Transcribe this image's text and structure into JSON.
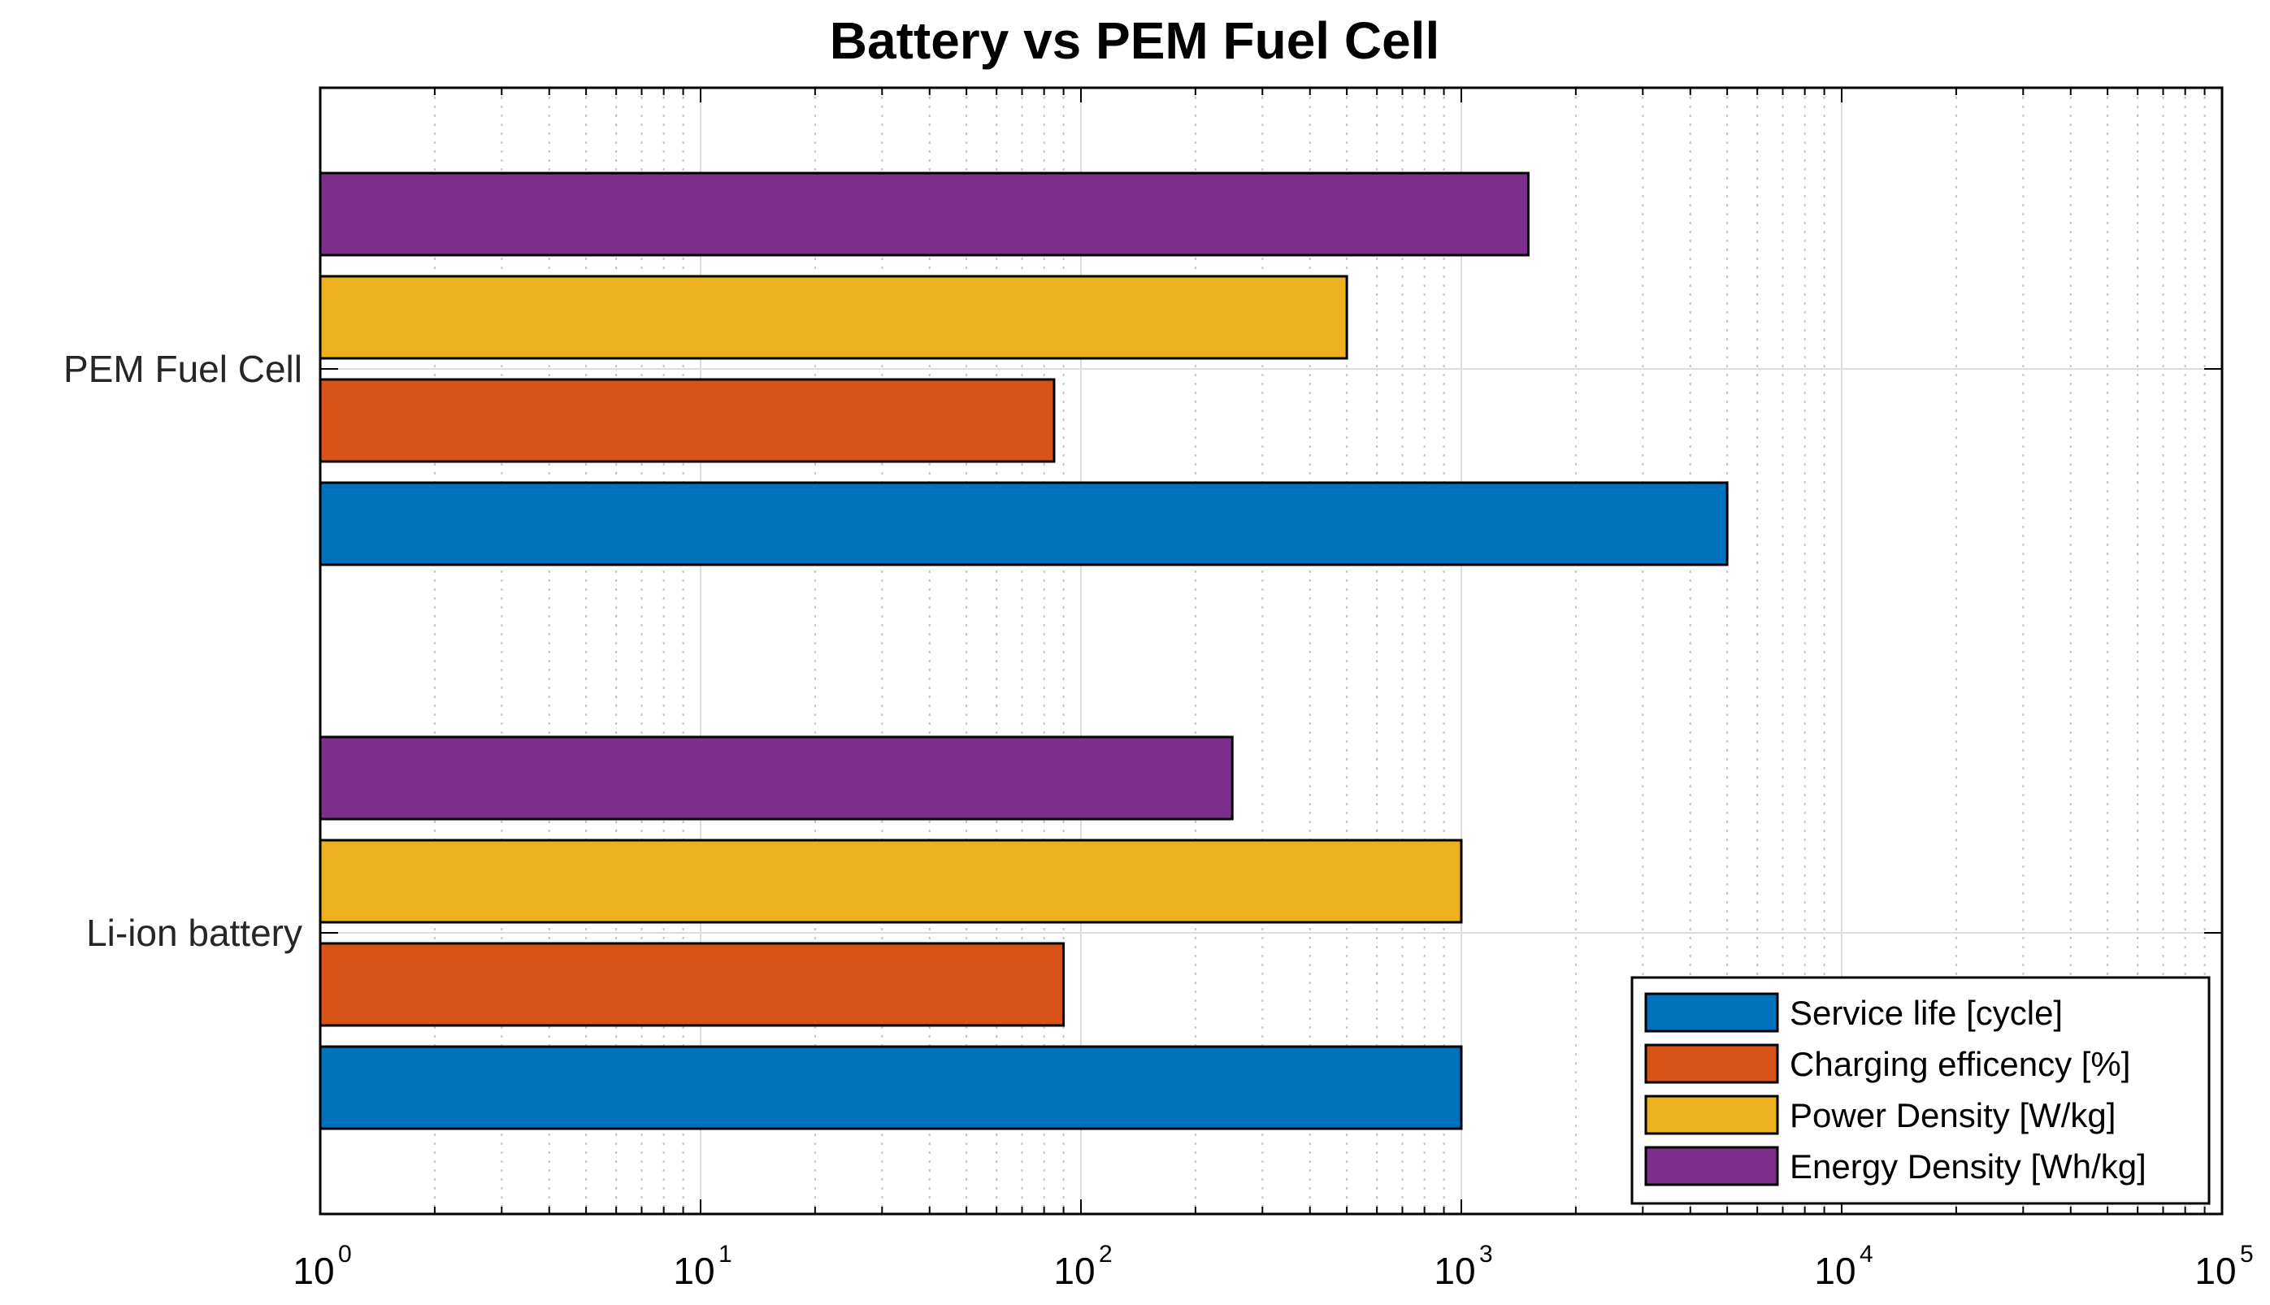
{
  "chart_data": {
    "type": "bar",
    "orientation": "horizontal",
    "title": "Battery vs PEM Fuel Cell",
    "xscale": "log",
    "xlim": [
      1,
      100000
    ],
    "xticks": [
      {
        "base": "10",
        "exp": "0",
        "value": 1
      },
      {
        "base": "10",
        "exp": "1",
        "value": 10
      },
      {
        "base": "10",
        "exp": "2",
        "value": 100
      },
      {
        "base": "10",
        "exp": "3",
        "value": 1000
      },
      {
        "base": "10",
        "exp": "4",
        "value": 10000
      },
      {
        "base": "10",
        "exp": "5",
        "value": 100000
      }
    ],
    "categories": [
      "Li-ion battery",
      "PEM Fuel Cell"
    ],
    "series": [
      {
        "name": "Service life [cycle]",
        "color": "#0072BD",
        "values": [
          1000,
          5000
        ]
      },
      {
        "name": "Charging efficency [%]",
        "color": "#D95319",
        "values": [
          90,
          85
        ]
      },
      {
        "name": "Power Density [W/kg]",
        "color": "#EDB120",
        "values": [
          1000,
          500
        ]
      },
      {
        "name": "Energy Density [Wh/kg]",
        "color": "#7E2F8E",
        "values": [
          250,
          1500
        ]
      }
    ],
    "grid": true,
    "minor_grid": true,
    "legend_position": "bottom-right"
  }
}
